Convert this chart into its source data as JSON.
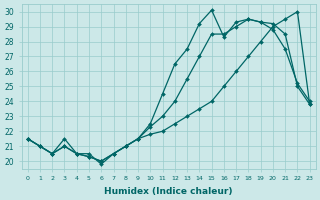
{
  "xlabel": "Humidex (Indice chaleur)",
  "bg_color": "#cce8e8",
  "grid_color": "#99cccc",
  "line_color": "#006666",
  "xlim": [
    -0.5,
    23.5
  ],
  "ylim": [
    19.5,
    30.5
  ],
  "xticks": [
    0,
    1,
    2,
    3,
    4,
    5,
    6,
    7,
    8,
    9,
    10,
    11,
    12,
    13,
    14,
    15,
    16,
    17,
    18,
    19,
    20,
    21,
    22,
    23
  ],
  "yticks": [
    20,
    21,
    22,
    23,
    24,
    25,
    26,
    27,
    28,
    29,
    30
  ],
  "series": [
    [
      21.5,
      21.0,
      20.5,
      21.5,
      20.5,
      20.5,
      19.8,
      20.5,
      21.0,
      21.5,
      22.5,
      24.5,
      26.5,
      27.5,
      29.2,
      30.1,
      28.3,
      29.3,
      29.5,
      29.3,
      28.8,
      27.5,
      25.2,
      24.0
    ],
    [
      21.5,
      21.0,
      20.5,
      21.0,
      20.5,
      20.3,
      20.0,
      20.5,
      21.0,
      21.5,
      22.3,
      23.0,
      24.0,
      25.5,
      27.0,
      28.5,
      28.5,
      29.0,
      29.5,
      29.3,
      29.2,
      28.5,
      25.0,
      23.8
    ],
    [
      21.5,
      21.0,
      20.5,
      21.0,
      20.5,
      20.3,
      20.0,
      20.5,
      21.0,
      21.5,
      21.8,
      22.0,
      22.5,
      23.0,
      23.5,
      24.0,
      25.0,
      26.0,
      27.0,
      28.0,
      29.0,
      29.5,
      30.0,
      23.8
    ]
  ]
}
